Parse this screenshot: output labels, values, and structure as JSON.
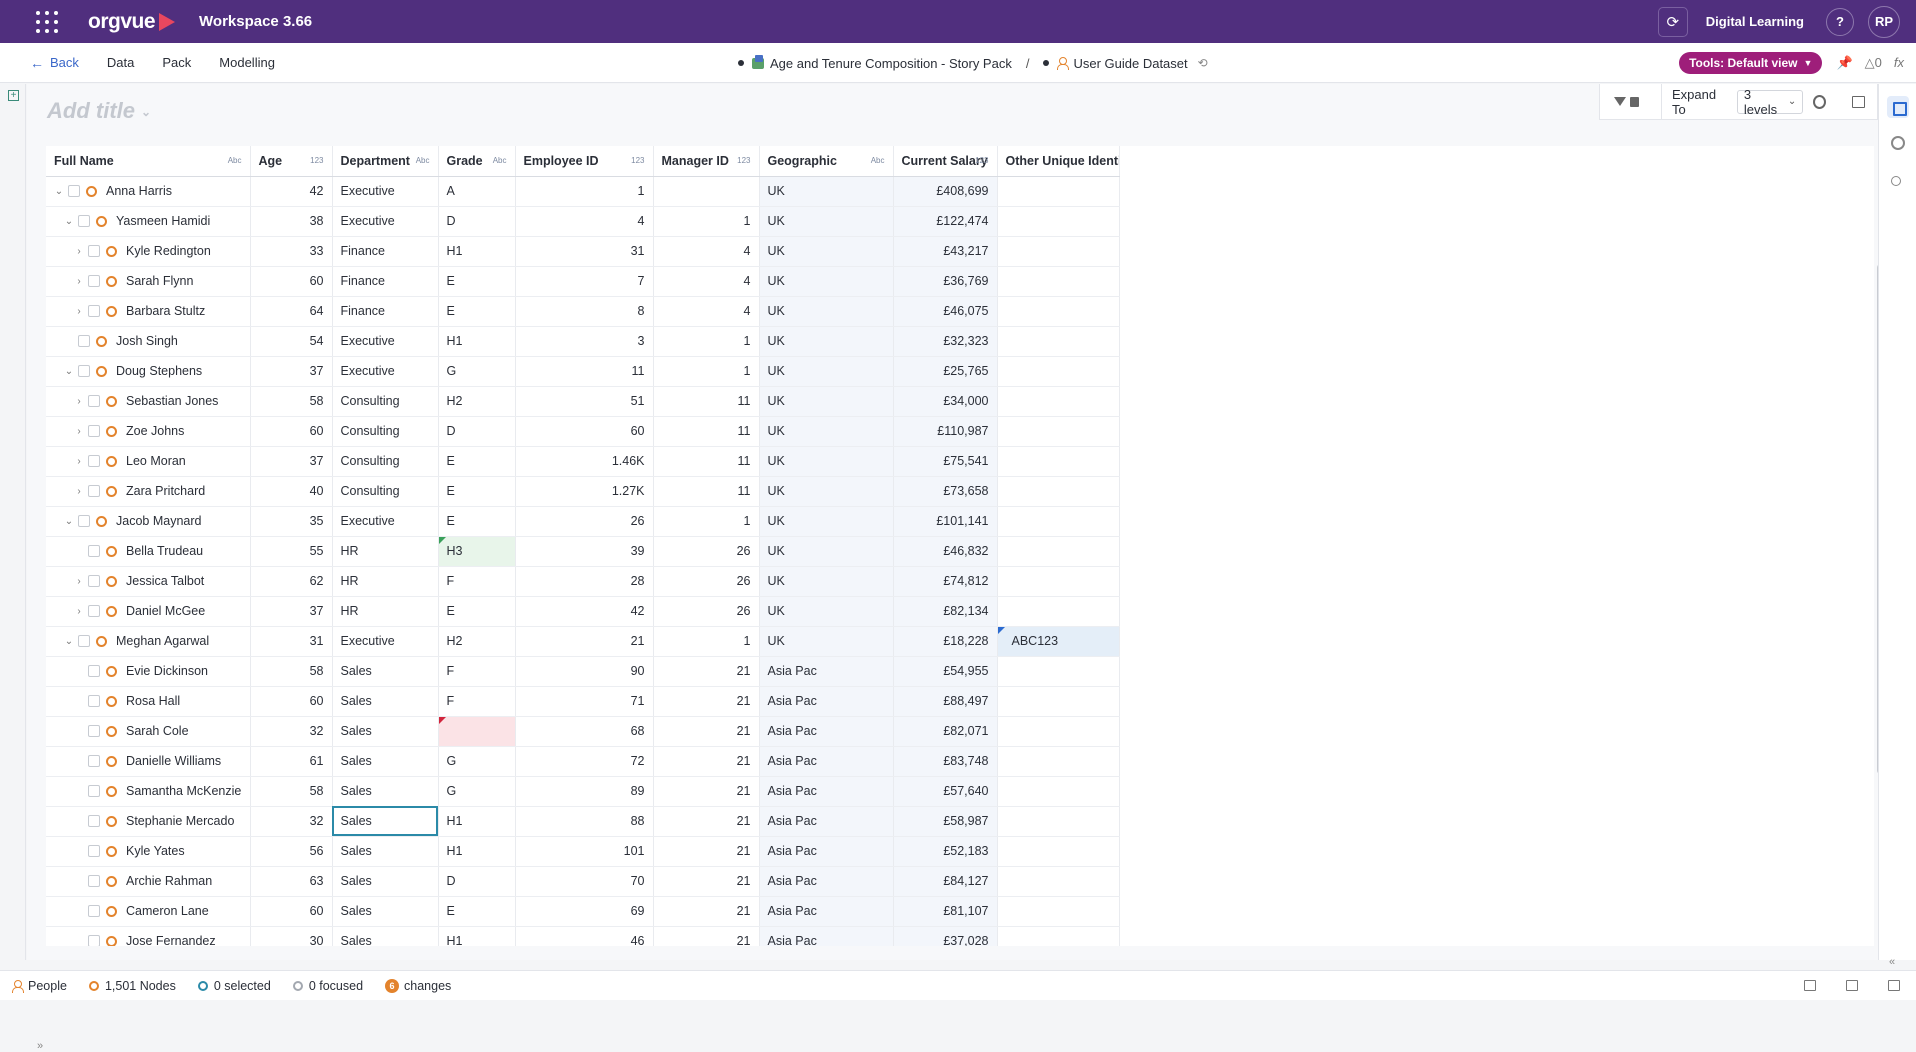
{
  "topbar": {
    "logo": "orgvue",
    "workspace_title": "Workspace 3.66",
    "org_name": "Digital Learning",
    "help": "?",
    "avatar": "RP"
  },
  "subbar": {
    "back": "Back",
    "menu": [
      "Data",
      "Pack",
      "Modelling"
    ],
    "pack_name": "Age and Tenure Composition - Story Pack",
    "separator": "/",
    "dataset_name": "User Guide Dataset",
    "tools_label": "Tools: Default view",
    "alert_count": "0"
  },
  "canvas": {
    "add_title": "Add title",
    "expand_label": "Expand To",
    "levels_value": "3 levels"
  },
  "grid": {
    "columns": [
      {
        "label": "Full Name",
        "tag": "Abc"
      },
      {
        "label": "Age",
        "tag": "123"
      },
      {
        "label": "Department",
        "tag": "Abc"
      },
      {
        "label": "Grade",
        "tag": "Abc"
      },
      {
        "label": "Employee ID",
        "tag": "123"
      },
      {
        "label": "Manager ID",
        "tag": "123"
      },
      {
        "label": "Geographic",
        "tag": "Abc"
      },
      {
        "label": "Current Salary",
        "tag": "123"
      },
      {
        "label": "Other Unique Identif...",
        "tag": ""
      }
    ],
    "rows": [
      {
        "indent": 0,
        "caret": "v",
        "ring": true,
        "name": "Anna Harris",
        "age": "42",
        "dept": "Executive",
        "grade": "A",
        "emp": "1",
        "mgr": "",
        "geo": "UK",
        "sal": "£408,699",
        "other": ""
      },
      {
        "indent": 1,
        "caret": "v",
        "ring": true,
        "name": "Yasmeen Hamidi",
        "age": "38",
        "dept": "Executive",
        "grade": "D",
        "emp": "4",
        "mgr": "1",
        "geo": "UK",
        "sal": "£122,474",
        "other": ""
      },
      {
        "indent": 2,
        "caret": ">",
        "ring": true,
        "name": "Kyle Redington",
        "age": "33",
        "dept": "Finance",
        "grade": "H1",
        "emp": "31",
        "mgr": "4",
        "geo": "UK",
        "sal": "£43,217",
        "other": ""
      },
      {
        "indent": 2,
        "caret": ">",
        "ring": true,
        "name": "Sarah Flynn",
        "age": "60",
        "dept": "Finance",
        "grade": "E",
        "emp": "7",
        "mgr": "4",
        "geo": "UK",
        "sal": "£36,769",
        "other": ""
      },
      {
        "indent": 2,
        "caret": ">",
        "ring": true,
        "name": "Barbara Stultz",
        "age": "64",
        "dept": "Finance",
        "grade": "E",
        "emp": "8",
        "mgr": "4",
        "geo": "UK",
        "sal": "£46,075",
        "other": ""
      },
      {
        "indent": 1,
        "caret": "",
        "ring": true,
        "name": "Josh Singh",
        "age": "54",
        "dept": "Executive",
        "grade": "H1",
        "emp": "3",
        "mgr": "1",
        "geo": "UK",
        "sal": "£32,323",
        "other": ""
      },
      {
        "indent": 1,
        "caret": "v",
        "ring": true,
        "name": "Doug Stephens",
        "age": "37",
        "dept": "Executive",
        "grade": "G",
        "emp": "11",
        "mgr": "1",
        "geo": "UK",
        "sal": "£25,765",
        "other": ""
      },
      {
        "indent": 2,
        "caret": ">",
        "ring": true,
        "name": "Sebastian Jones",
        "age": "58",
        "dept": "Consulting",
        "grade": "H2",
        "emp": "51",
        "mgr": "11",
        "geo": "UK",
        "sal": "£34,000",
        "other": ""
      },
      {
        "indent": 2,
        "caret": ">",
        "ring": true,
        "name": "Zoe Johns",
        "age": "60",
        "dept": "Consulting",
        "grade": "D",
        "emp": "60",
        "mgr": "11",
        "geo": "UK",
        "sal": "£110,987",
        "other": ""
      },
      {
        "indent": 2,
        "caret": ">",
        "ring": true,
        "name": "Leo Moran",
        "age": "37",
        "dept": "Consulting",
        "grade": "E",
        "emp": "1.46K",
        "mgr": "11",
        "geo": "UK",
        "sal": "£75,541",
        "other": ""
      },
      {
        "indent": 2,
        "caret": ">",
        "ring": true,
        "name": "Zara Pritchard",
        "age": "40",
        "dept": "Consulting",
        "grade": "E",
        "emp": "1.27K",
        "mgr": "11",
        "geo": "UK",
        "sal": "£73,658",
        "other": ""
      },
      {
        "indent": 1,
        "caret": "v",
        "ring": true,
        "name": "Jacob Maynard",
        "age": "35",
        "dept": "Executive",
        "grade": "E",
        "emp": "26",
        "mgr": "1",
        "geo": "UK",
        "sal": "£101,141",
        "other": ""
      },
      {
        "indent": 2,
        "caret": "",
        "ring": true,
        "name": "Bella Trudeau",
        "age": "55",
        "dept": "HR",
        "grade": "H3",
        "emp": "39",
        "mgr": "26",
        "geo": "UK",
        "sal": "£46,832",
        "other": "",
        "grade_flag": "green"
      },
      {
        "indent": 2,
        "caret": ">",
        "ring": true,
        "name": "Jessica Talbot",
        "age": "62",
        "dept": "HR",
        "grade": "F",
        "emp": "28",
        "mgr": "26",
        "geo": "UK",
        "sal": "£74,812",
        "other": ""
      },
      {
        "indent": 2,
        "caret": ">",
        "ring": true,
        "name": "Daniel McGee",
        "age": "37",
        "dept": "HR",
        "grade": "E",
        "emp": "42",
        "mgr": "26",
        "geo": "UK",
        "sal": "£82,134",
        "other": ""
      },
      {
        "indent": 1,
        "caret": "v",
        "ring": true,
        "name": "Meghan Agarwal",
        "age": "31",
        "dept": "Executive",
        "grade": "H2",
        "emp": "21",
        "mgr": "1",
        "geo": "UK",
        "sal": "£18,228",
        "other": "ABC123",
        "other_flag": "blue"
      },
      {
        "indent": 2,
        "caret": "",
        "ring": true,
        "name": "Evie Dickinson",
        "age": "58",
        "dept": "Sales",
        "grade": "F",
        "emp": "90",
        "mgr": "21",
        "geo": "Asia Pac",
        "sal": "£54,955",
        "other": ""
      },
      {
        "indent": 2,
        "caret": "",
        "ring": true,
        "name": "Rosa Hall",
        "age": "60",
        "dept": "Sales",
        "grade": "F",
        "emp": "71",
        "mgr": "21",
        "geo": "Asia Pac",
        "sal": "£88,497",
        "other": ""
      },
      {
        "indent": 2,
        "caret": "",
        "ring": true,
        "name": "Sarah Cole",
        "age": "32",
        "dept": "Sales",
        "grade": "",
        "emp": "68",
        "mgr": "21",
        "geo": "Asia Pac",
        "sal": "£82,071",
        "other": "",
        "grade_flag": "red"
      },
      {
        "indent": 2,
        "caret": "",
        "ring": true,
        "name": "Danielle Williams",
        "age": "61",
        "dept": "Sales",
        "grade": "G",
        "emp": "72",
        "mgr": "21",
        "geo": "Asia Pac",
        "sal": "£83,748",
        "other": ""
      },
      {
        "indent": 2,
        "caret": "",
        "ring": true,
        "name": "Samantha McKenzie",
        "age": "58",
        "dept": "Sales",
        "grade": "G",
        "emp": "89",
        "mgr": "21",
        "geo": "Asia Pac",
        "sal": "£57,640",
        "other": ""
      },
      {
        "indent": 2,
        "caret": "",
        "ring": true,
        "name": "Stephanie Mercado",
        "age": "32",
        "dept": "Sales",
        "grade": "H1",
        "emp": "88",
        "mgr": "21",
        "geo": "Asia Pac",
        "sal": "£58,987",
        "other": "",
        "dept_selected": true
      },
      {
        "indent": 2,
        "caret": "",
        "ring": true,
        "name": "Kyle Yates",
        "age": "56",
        "dept": "Sales",
        "grade": "H1",
        "emp": "101",
        "mgr": "21",
        "geo": "Asia Pac",
        "sal": "£52,183",
        "other": ""
      },
      {
        "indent": 2,
        "caret": "",
        "ring": true,
        "name": "Archie Rahman",
        "age": "63",
        "dept": "Sales",
        "grade": "D",
        "emp": "70",
        "mgr": "21",
        "geo": "Asia Pac",
        "sal": "£84,127",
        "other": ""
      },
      {
        "indent": 2,
        "caret": "",
        "ring": true,
        "name": "Cameron Lane",
        "age": "60",
        "dept": "Sales",
        "grade": "E",
        "emp": "69",
        "mgr": "21",
        "geo": "Asia Pac",
        "sal": "£81,107",
        "other": ""
      },
      {
        "indent": 2,
        "caret": "",
        "ring": true,
        "name": "Jose Fernandez",
        "age": "30",
        "dept": "Sales",
        "grade": "H1",
        "emp": "46",
        "mgr": "21",
        "geo": "Asia Pac",
        "sal": "£37,028",
        "other": ""
      }
    ]
  },
  "statusbar": {
    "people": "People",
    "nodes": "1,501 Nodes",
    "selected": "0 selected",
    "focused": "0 focused",
    "changes_count": "6",
    "changes": "changes"
  },
  "colors": {
    "topbar": "#502f7e",
    "tools_button": "#9e1e7a",
    "node_ring": "#e3832c",
    "link": "#3a67c9"
  }
}
